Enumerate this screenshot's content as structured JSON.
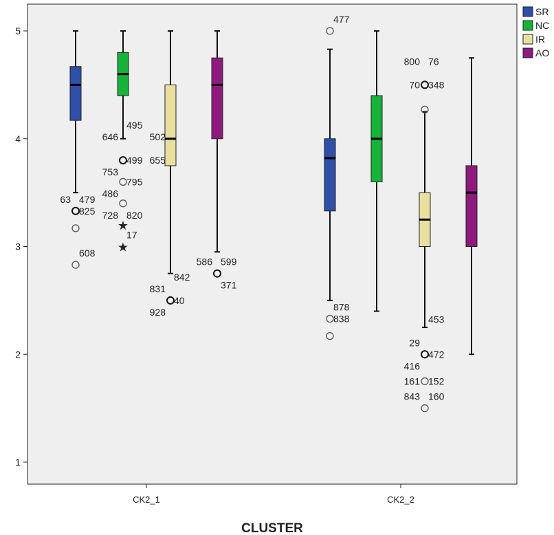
{
  "chart_data": {
    "type": "boxplot",
    "xlabel": "CLUSTER",
    "ylabel": "",
    "ylim": [
      0.75,
      5.25
    ],
    "yticks": [
      1,
      2,
      3,
      4,
      5
    ],
    "categories": [
      "CK2_1",
      "CK2_2"
    ],
    "legend_position": "top-right",
    "grid": false,
    "series": [
      {
        "name": "SR",
        "color": "#2f4fa8"
      },
      {
        "name": "NC",
        "color": "#17b23a"
      },
      {
        "name": "IR",
        "color": "#e8e0a0"
      },
      {
        "name": "AO",
        "color": "#8e1a7e"
      }
    ],
    "boxes": [
      {
        "category": "CK2_1",
        "series": "SR",
        "whisker_low": 3.5,
        "q1": 4.17,
        "median": 4.5,
        "q3": 4.67,
        "whisker_high": 5.0,
        "outliers": [
          {
            "value": 3.33,
            "symbol": "circle",
            "labels": [
              {
                "text": "63",
                "side": "left",
                "row": -1
              },
              {
                "text": "479",
                "side": "right",
                "row": -1
              },
              {
                "text": "825",
                "side": "right",
                "row": 0
              }
            ]
          },
          {
            "value": 3.17,
            "symbol": "circle",
            "labels": []
          },
          {
            "value": 2.83,
            "symbol": "circle",
            "labels": [
              {
                "text": "608",
                "side": "right",
                "row": -1
              }
            ]
          }
        ]
      },
      {
        "category": "CK2_1",
        "series": "NC",
        "whisker_low": 4.0,
        "q1": 4.4,
        "median": 4.6,
        "q3": 4.8,
        "whisker_high": 5.0,
        "outliers": [
          {
            "value": 3.8,
            "symbol": "circle",
            "labels": [
              {
                "text": "495",
                "side": "right",
                "row": -3
              },
              {
                "text": "646",
                "side": "left",
                "row": -2
              },
              {
                "text": "499",
                "side": "right",
                "row": 0
              },
              {
                "text": "753",
                "side": "left",
                "row": 1
              }
            ]
          },
          {
            "value": 3.6,
            "symbol": "circle",
            "labels": [
              {
                "text": "795",
                "side": "right",
                "row": 0
              },
              {
                "text": "486",
                "side": "left",
                "row": 1
              }
            ]
          },
          {
            "value": 3.4,
            "symbol": "circle",
            "labels": [
              {
                "text": "728",
                "side": "left",
                "row": 1
              },
              {
                "text": "820",
                "side": "right",
                "row": 1
              }
            ]
          },
          {
            "value": 3.2,
            "symbol": "star",
            "labels": []
          },
          {
            "value": 3.0,
            "symbol": "star",
            "labels": [
              {
                "text": "17",
                "side": "right",
                "row": -1
              }
            ]
          }
        ]
      },
      {
        "category": "CK2_1",
        "series": "IR",
        "whisker_low": 2.75,
        "q1": 3.75,
        "median": 4.0,
        "q3": 4.5,
        "whisker_high": 5.0,
        "outliers": [
          {
            "value": 2.5,
            "symbol": "circle",
            "labels": [
              {
                "text": "502",
                "side": "left",
                "row": -14
              },
              {
                "text": "655",
                "side": "left",
                "row": -12
              },
              {
                "text": "842",
                "side": "right",
                "row": -2
              },
              {
                "text": "831",
                "side": "left",
                "row": -1
              },
              {
                "text": "40",
                "side": "right",
                "row": 0
              },
              {
                "text": "928",
                "side": "left",
                "row": 1
              }
            ]
          }
        ]
      },
      {
        "category": "CK2_1",
        "series": "AO",
        "whisker_low": 2.95,
        "q1": 4.0,
        "median": 4.5,
        "q3": 4.75,
        "whisker_high": 5.0,
        "outliers": [
          {
            "value": 2.75,
            "symbol": "circle",
            "labels": [
              {
                "text": "586",
                "side": "left",
                "row": -1
              },
              {
                "text": "599",
                "side": "right",
                "row": -1
              },
              {
                "text": "371",
                "side": "right",
                "row": 1
              }
            ]
          }
        ]
      },
      {
        "category": "CK2_2",
        "series": "SR",
        "whisker_low": 2.5,
        "q1": 3.33,
        "median": 3.82,
        "q3": 4.0,
        "whisker_high": 4.83,
        "outliers": [
          {
            "value": 5.0,
            "symbol": "circle",
            "labels": [
              {
                "text": "477",
                "side": "right",
                "row": -1
              }
            ]
          },
          {
            "value": 2.33,
            "symbol": "circle",
            "labels": [
              {
                "text": "878",
                "side": "right",
                "row": -1
              },
              {
                "text": "838",
                "side": "right",
                "row": 0
              }
            ]
          },
          {
            "value": 2.17,
            "symbol": "circle",
            "labels": []
          }
        ]
      },
      {
        "category": "CK2_2",
        "series": "NC",
        "whisker_low": 2.4,
        "q1": 3.6,
        "median": 4.0,
        "q3": 4.4,
        "whisker_high": 5.0,
        "outliers": []
      },
      {
        "category": "CK2_2",
        "series": "IR",
        "whisker_low": 2.25,
        "q1": 3.0,
        "median": 3.25,
        "q3": 3.5,
        "whisker_high": 4.25,
        "outliers": [
          {
            "value": 4.5,
            "symbol": "circle",
            "labels": [
              {
                "text": "800",
                "side": "left",
                "row": -2
              },
              {
                "text": "76",
                "side": "right",
                "row": -2
              },
              {
                "text": "70",
                "side": "left",
                "row": 0
              },
              {
                "text": "348",
                "side": "right",
                "row": 0
              }
            ]
          },
          {
            "value": 4.27,
            "symbol": "circle",
            "labels": []
          },
          {
            "value": 2.0,
            "symbol": "circle",
            "labels": [
              {
                "text": "453",
                "side": "right",
                "row": -3
              },
              {
                "text": "29",
                "side": "left",
                "row": -1
              },
              {
                "text": "472",
                "side": "right",
                "row": 0
              },
              {
                "text": "416",
                "side": "left",
                "row": 1
              }
            ]
          },
          {
            "value": 1.75,
            "symbol": "circle",
            "labels": [
              {
                "text": "161",
                "side": "left",
                "row": 0
              },
              {
                "text": "152",
                "side": "right",
                "row": 0
              }
            ]
          },
          {
            "value": 1.5,
            "symbol": "circle",
            "labels": [
              {
                "text": "843",
                "side": "left",
                "row": -1
              },
              {
                "text": "160",
                "side": "right",
                "row": -1
              }
            ]
          }
        ]
      },
      {
        "category": "CK2_2",
        "series": "AO",
        "whisker_low": 2.0,
        "q1": 3.0,
        "median": 3.5,
        "q3": 3.75,
        "whisker_high": 4.75,
        "outliers": []
      }
    ]
  }
}
